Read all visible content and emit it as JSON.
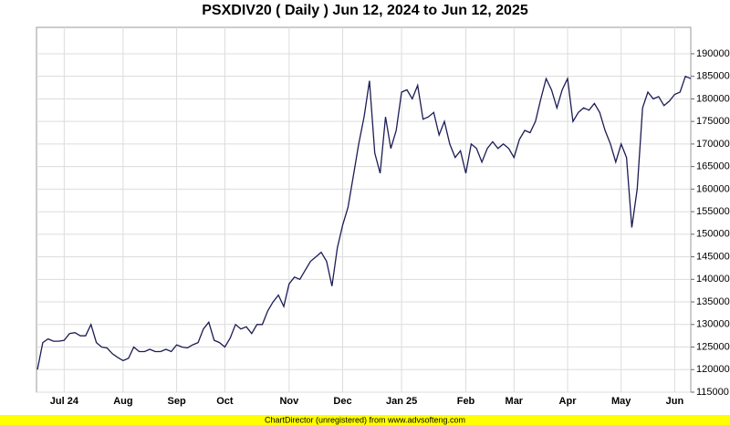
{
  "chart_data": {
    "type": "line",
    "title": "PSXDIV20 ( Daily ) Jun 12, 2024 to Jun 12, 2025",
    "footer": "ChartDirector (unregistered) from www.advsofteng.com",
    "categories": [
      null,
      null,
      null,
      null,
      null,
      "Jul 24",
      null,
      null,
      null,
      null,
      null,
      null,
      null,
      null,
      null,
      null,
      "Aug",
      null,
      null,
      null,
      null,
      null,
      null,
      null,
      null,
      null,
      "Sep",
      null,
      null,
      null,
      null,
      null,
      null,
      null,
      null,
      "Oct",
      null,
      null,
      null,
      null,
      null,
      null,
      null,
      null,
      null,
      null,
      null,
      "Nov",
      null,
      null,
      null,
      null,
      null,
      null,
      null,
      null,
      null,
      "Dec",
      null,
      null,
      null,
      null,
      null,
      null,
      null,
      null,
      null,
      null,
      "Jan 25",
      null,
      null,
      null,
      null,
      null,
      null,
      null,
      null,
      null,
      null,
      null,
      "Feb",
      null,
      null,
      null,
      null,
      null,
      null,
      null,
      null,
      "Mar",
      null,
      null,
      null,
      null,
      null,
      null,
      null,
      null,
      null,
      "Apr",
      null,
      null,
      null,
      null,
      null,
      null,
      null,
      null,
      null,
      "May",
      null,
      null,
      null,
      null,
      null,
      null,
      null,
      null,
      null,
      "Jun",
      null,
      null,
      null
    ],
    "series": [
      {
        "color": "#1c1c55",
        "values": [
          120000,
          126000,
          126800,
          126300,
          126300,
          126500,
          128000,
          128200,
          127500,
          127500,
          130000,
          126000,
          125000,
          124800,
          123500,
          122700,
          122000,
          122500,
          125000,
          124000,
          124000,
          124500,
          124000,
          124000,
          124500,
          124000,
          125500,
          125000,
          124800,
          125500,
          126000,
          129000,
          130500,
          126500,
          126000,
          125000,
          127000,
          130000,
          129000,
          129500,
          128000,
          130000,
          130000,
          133000,
          135000,
          136500,
          134000,
          139000,
          140500,
          140000,
          142000,
          144000,
          145000,
          146000,
          144000,
          138500,
          147000,
          152000,
          156000,
          163000,
          170000,
          176000,
          184000,
          168000,
          163500,
          176000,
          169000,
          173000,
          181500,
          182000,
          180000,
          183000,
          175500,
          176000,
          177000,
          172000,
          175000,
          170000,
          167000,
          168500,
          163500,
          170000,
          169000,
          166000,
          169000,
          170500,
          169000,
          170000,
          169000,
          167000,
          171000,
          173000,
          172500,
          175000,
          180000,
          184500,
          182000,
          178000,
          182000,
          184500,
          175000,
          177000,
          178000,
          177500,
          179000,
          177000,
          173000,
          170000,
          166000,
          170000,
          167000,
          151500,
          160000,
          178000,
          181500,
          180000,
          180500,
          178500,
          179500,
          181000,
          181500,
          185000,
          184500
        ]
      }
    ],
    "ylim": [
      115000,
      195850
    ],
    "yticks": [
      115000,
      120000,
      125000,
      130000,
      135000,
      140000,
      145000,
      150000,
      155000,
      160000,
      165000,
      170000,
      175000,
      180000,
      185000,
      190000
    ],
    "grid": true
  }
}
